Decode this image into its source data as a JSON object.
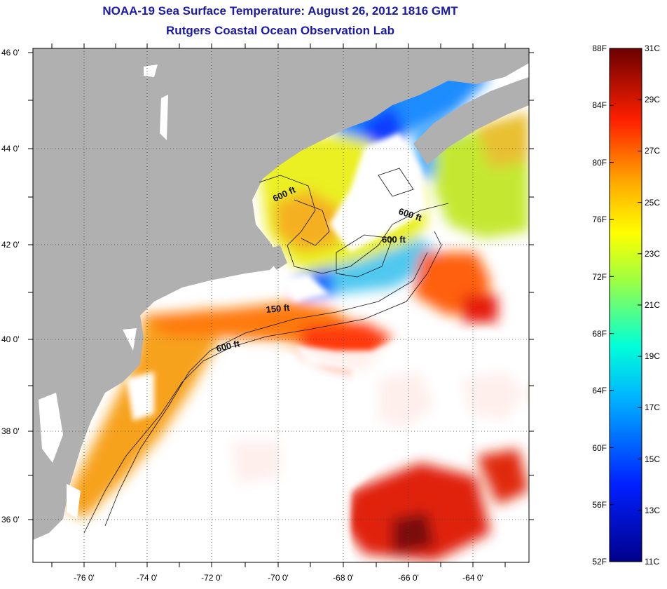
{
  "title": "NOAA-19 Sea Surface Temperature:  August 26, 2012 1816 GMT",
  "subtitle": "Rutgers Coastal Ocean Observation Lab",
  "lat_ticks": [
    {
      "value": 46,
      "label": "46 0'"
    },
    {
      "value": 44,
      "label": "44 0'"
    },
    {
      "value": 42,
      "label": "42 0'"
    },
    {
      "value": 40,
      "label": "40 0'"
    },
    {
      "value": 38,
      "label": "38 0'"
    },
    {
      "value": 36,
      "label": "36 0'"
    }
  ],
  "lon_ticks": [
    {
      "value": -76,
      "label": "-76 0'"
    },
    {
      "value": -74,
      "label": "-74 0'"
    },
    {
      "value": -72,
      "label": "-72 0'"
    },
    {
      "value": -70,
      "label": "-70 0'"
    },
    {
      "value": -68,
      "label": "-68 0'"
    },
    {
      "value": -66,
      "label": "-66 0'"
    },
    {
      "value": -64,
      "label": "-64 0'"
    }
  ],
  "contour_labels": [
    "600 ft",
    "600 ft",
    "600 ft",
    "150 ft",
    "600 ft"
  ],
  "colorbar": {
    "fahrenheit": [
      "88F",
      "84F",
      "80F",
      "76F",
      "72F",
      "68F",
      "64F",
      "60F",
      "56F",
      "52F"
    ],
    "celsius": [
      "31C",
      "29C",
      "27C",
      "25C",
      "23C",
      "21C",
      "19C",
      "17C",
      "15C",
      "13C",
      "11C"
    ]
  },
  "colors": {
    "land": "#b0b0b0",
    "title": "#1a1aa6",
    "cloud": "#ffffff"
  }
}
